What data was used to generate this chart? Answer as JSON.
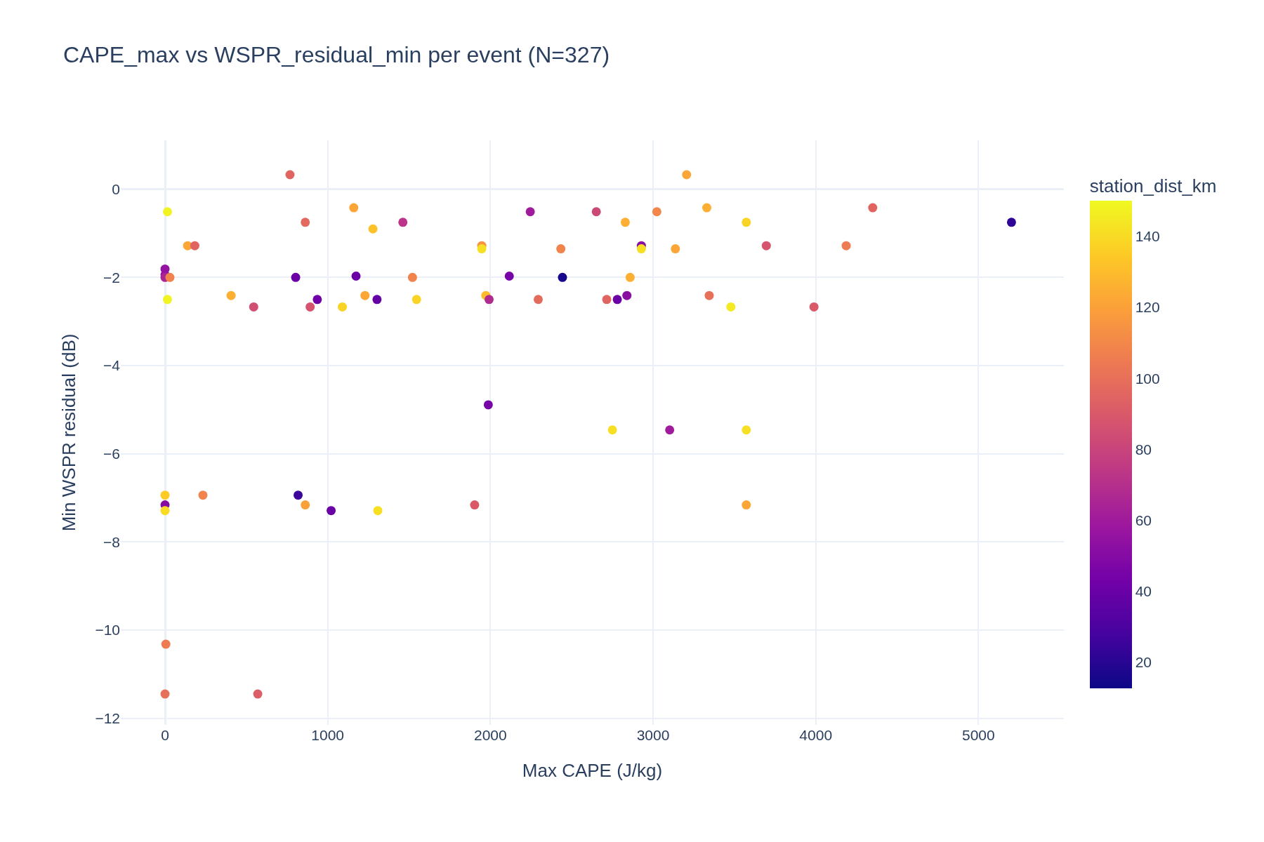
{
  "chart_data": {
    "type": "scatter",
    "title": "CAPE_max vs WSPR_residual_min per event (N=327)",
    "xlabel": "Max CAPE (J/kg)",
    "ylabel": "Min WSPR residual (dB)",
    "clabel": "station_dist_km",
    "x": [
      768,
      15,
      139,
      183,
      862,
      1160,
      1278,
      1462,
      0,
      0,
      0,
      30,
      406,
      545,
      15,
      803,
      892,
      936,
      1174,
      1090,
      1229,
      1303,
      1521,
      1546,
      1947,
      1947,
      1972,
      1992,
      2245,
      1987,
      2116,
      2294,
      2433,
      2443,
      2651,
      2715,
      2780,
      2839,
      2829,
      2859,
      2928,
      2928,
      3023,
      3137,
      3206,
      3330,
      3345,
      3478,
      3573,
      3696,
      3989,
      4187,
      4350,
      5203,
      2750,
      3102,
      3573,
      0,
      0,
      0,
      233,
      818,
      862,
      1021,
      1308,
      1903,
      3573,
      5,
      0,
      570
    ],
    "values": [
      0.33,
      -0.51,
      -1.28,
      -1.28,
      -0.75,
      -0.42,
      -0.9,
      -0.75,
      -1.81,
      -1.94,
      -2.0,
      -2.0,
      -2.41,
      -2.67,
      -2.5,
      -2.0,
      -2.67,
      -2.5,
      -1.97,
      -2.67,
      -2.41,
      -2.5,
      -2.0,
      -2.5,
      -1.28,
      -1.35,
      -2.41,
      -2.5,
      -0.51,
      -4.89,
      -1.97,
      -2.5,
      -1.35,
      -2.0,
      -0.51,
      -2.5,
      -2.5,
      -2.41,
      -0.75,
      -2.0,
      -1.28,
      -1.35,
      -0.51,
      -1.35,
      0.33,
      -0.42,
      -2.41,
      -2.67,
      -0.75,
      -1.28,
      -2.67,
      -1.28,
      -0.42,
      -0.75,
      -5.46,
      -5.46,
      -5.46,
      -6.94,
      -7.16,
      -7.29,
      -6.94,
      -6.94,
      -7.16,
      -7.29,
      -7.29,
      -7.16,
      -7.16,
      -10.32,
      -11.45,
      -11.45
    ],
    "cvalues": [
      95,
      148,
      122,
      95,
      97,
      122,
      132,
      72,
      55,
      55,
      65,
      108,
      125,
      85,
      148,
      40,
      87,
      42,
      40,
      138,
      122,
      38,
      108,
      138,
      115,
      142,
      130,
      68,
      60,
      45,
      45,
      98,
      108,
      15,
      82,
      95,
      40,
      52,
      125,
      125,
      52,
      142,
      110,
      122,
      122,
      125,
      100,
      145,
      138,
      88,
      90,
      105,
      95,
      22,
      142,
      60,
      142,
      135,
      50,
      140,
      108,
      25,
      120,
      40,
      142,
      90,
      122,
      105,
      100,
      92
    ],
    "xlim": [
      -272,
      5525
    ],
    "ylim": [
      -12.15,
      1.11
    ],
    "xticks": [
      0,
      1000,
      2000,
      3000,
      4000,
      5000
    ],
    "yticks": [
      -12,
      -10,
      -8,
      -6,
      -4,
      -2,
      0
    ],
    "clim": [
      12.5,
      150
    ],
    "cticks": [
      20,
      40,
      60,
      80,
      100,
      120,
      140
    ],
    "grid": true,
    "marker": "circle"
  }
}
